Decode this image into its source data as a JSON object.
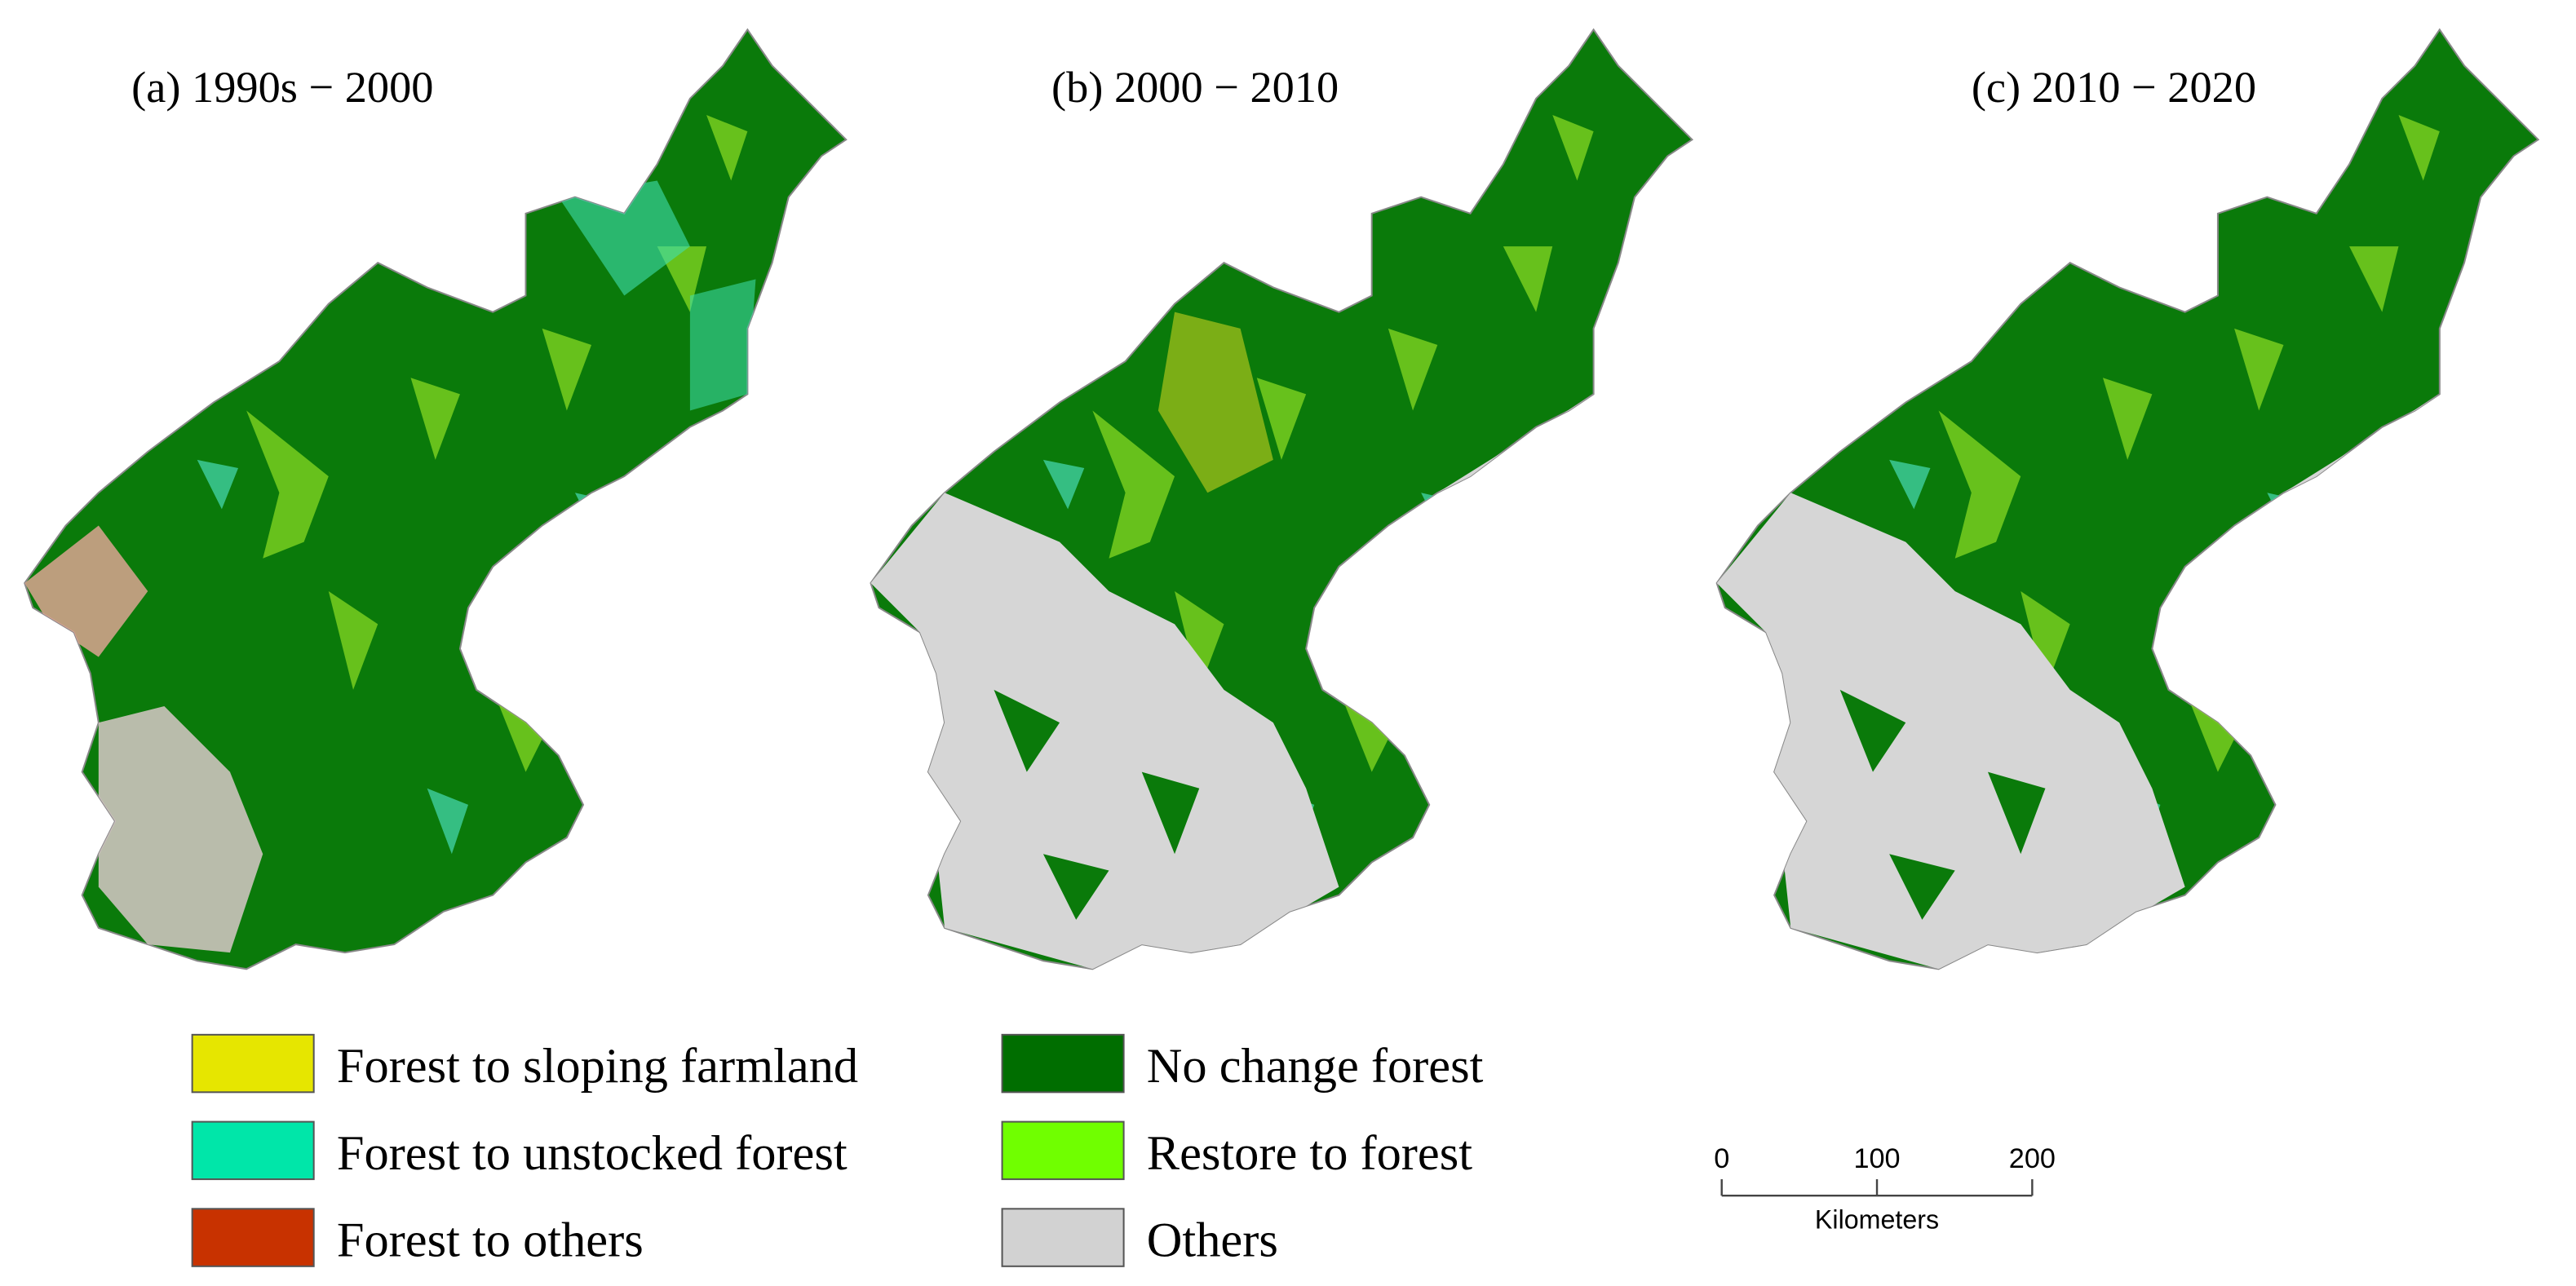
{
  "panels": [
    {
      "title": "(a) 1990s − 2000"
    },
    {
      "title": "(b) 2000 − 2010"
    },
    {
      "title": "(c) 2010 − 2020"
    }
  ],
  "legend": [
    {
      "label": "Forest to sloping farmland",
      "color": "#e6e600"
    },
    {
      "label": "Forest to unstocked forest",
      "color": "#00e6a9"
    },
    {
      "label": "Forest to others",
      "color": "#c83200"
    },
    {
      "label": "No change forest",
      "color": "#006e00"
    },
    {
      "label": "Restore to forest",
      "color": "#70ff00"
    },
    {
      "label": "Others",
      "color": "#d2d2d2"
    }
  ],
  "scale_bar": {
    "ticks": [
      0,
      100,
      200
    ],
    "unit": "Kilometers"
  }
}
